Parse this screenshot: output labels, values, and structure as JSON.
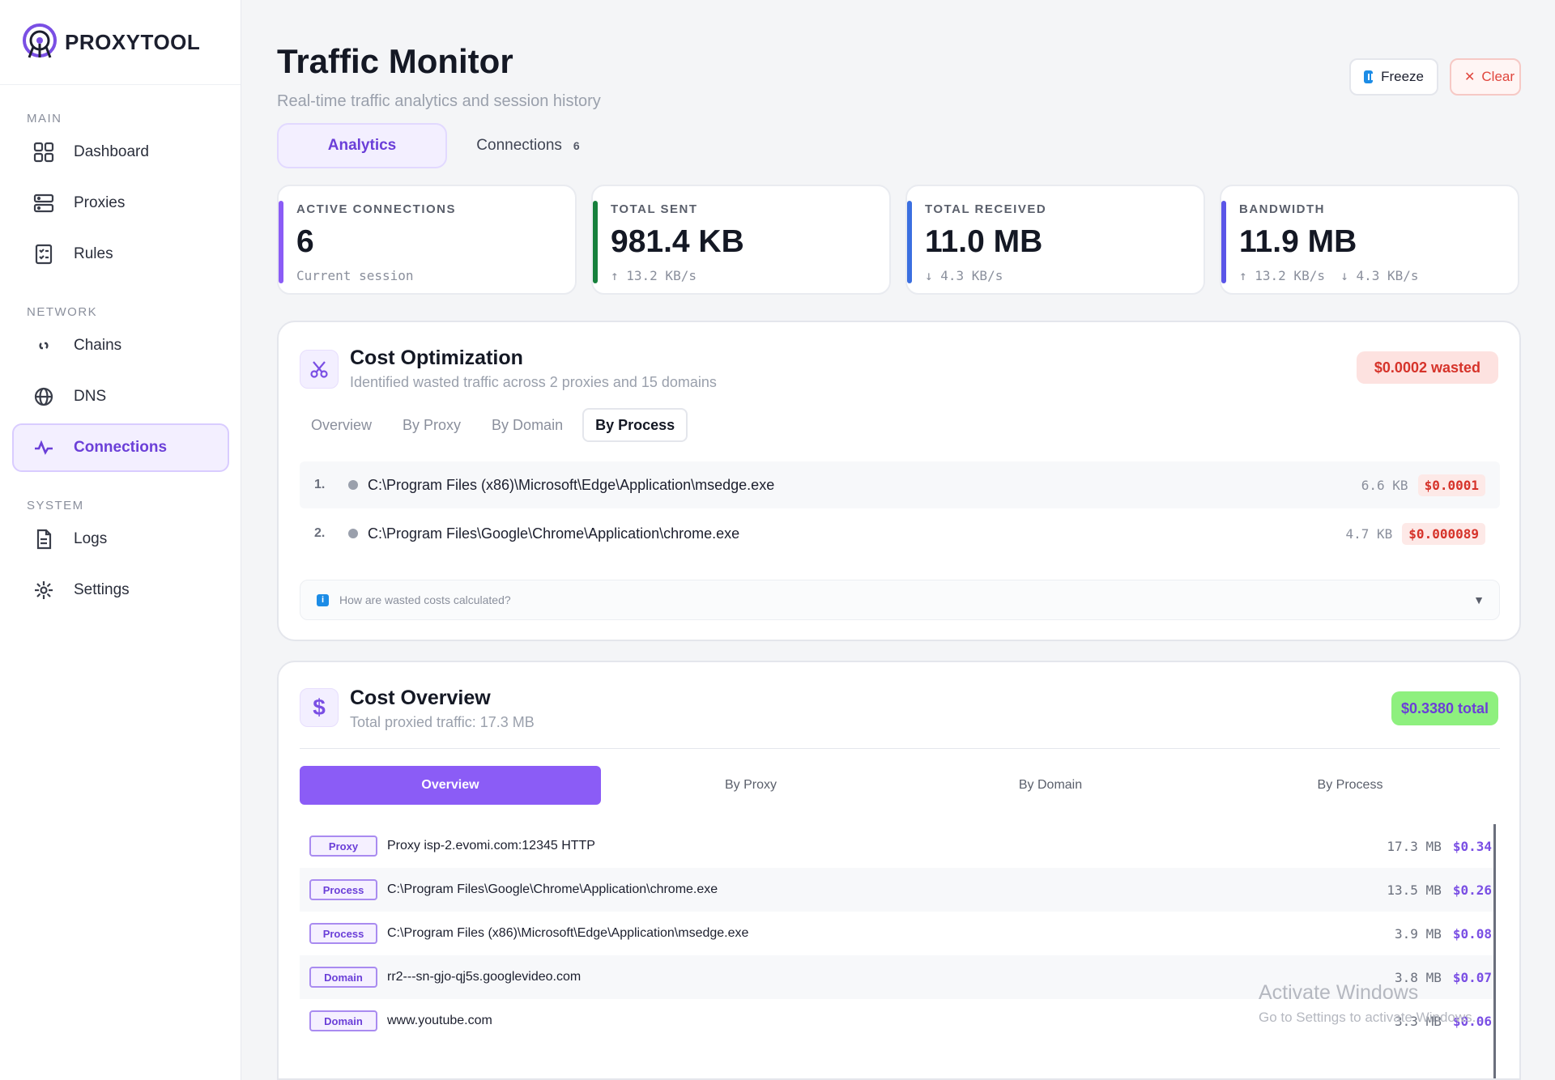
{
  "brand": {
    "name": "PROXYTOOL"
  },
  "sidebar": {
    "sections": [
      {
        "title": "MAIN",
        "items": [
          {
            "label": "Dashboard",
            "icon": "grid-icon"
          },
          {
            "label": "Proxies",
            "icon": "server-icon"
          },
          {
            "label": "Rules",
            "icon": "checklist-icon"
          }
        ]
      },
      {
        "title": "NETWORK",
        "items": [
          {
            "label": "Chains",
            "icon": "link-icon"
          },
          {
            "label": "DNS",
            "icon": "globe-icon"
          },
          {
            "label": "Connections",
            "icon": "activity-icon",
            "active": true
          }
        ]
      },
      {
        "title": "SYSTEM",
        "items": [
          {
            "label": "Logs",
            "icon": "document-icon"
          },
          {
            "label": "Settings",
            "icon": "gear-icon"
          }
        ]
      }
    ]
  },
  "header": {
    "title": "Traffic Monitor",
    "subtitle": "Real-time traffic analytics and session history",
    "freeze_label": "Freeze",
    "clear_label": "Clear"
  },
  "tabs": [
    {
      "label": "Analytics",
      "active": true
    },
    {
      "label": "Connections",
      "count": "6"
    }
  ],
  "stats": [
    {
      "label": "ACTIVE CONNECTIONS",
      "value": "6",
      "sub": "Current session",
      "color": "#8b5cf6"
    },
    {
      "label": "TOTAL SENT",
      "value": "981.4 KB",
      "sub": "↑ 13.2 KB/s",
      "color": "#16803c"
    },
    {
      "label": "TOTAL RECEIVED",
      "value": "11.0 MB",
      "sub": "↓ 4.3 KB/s",
      "color": "#3b6fe0"
    },
    {
      "label": "BANDWIDTH",
      "value": "11.9 MB",
      "sub": "↑ 13.2 KB/s  ↓ 4.3 KB/s",
      "color": "#5a55e8"
    }
  ],
  "cost_optimization": {
    "title": "Cost Optimization",
    "subtitle": "Identified wasted traffic across 2 proxies and 15 domains",
    "badge": "$0.0002 wasted",
    "subtabs": [
      "Overview",
      "By Proxy",
      "By Domain",
      "By Process"
    ],
    "active_subtab": "By Process",
    "rows": [
      {
        "num": "1.",
        "path": "C:\\Program Files (x86)\\Microsoft\\Edge\\Application\\msedge.exe",
        "size": "6.6 KB",
        "cost": "$0.0001"
      },
      {
        "num": "2.",
        "path": "C:\\Program Files\\Google\\Chrome\\Application\\chrome.exe",
        "size": "4.7 KB",
        "cost": "$0.000089"
      }
    ],
    "info_text": "How are wasted costs calculated?"
  },
  "cost_overview": {
    "title": "Cost Overview",
    "subtitle": "Total proxied traffic: 17.3 MB",
    "badge": "$0.3380 total",
    "tabs": [
      "Overview",
      "By Proxy",
      "By Domain",
      "By Process"
    ],
    "rows": [
      {
        "tag": "Proxy",
        "path": "Proxy isp-2.evomi.com:12345 HTTP",
        "size": "17.3 MB",
        "cost": "$0.34"
      },
      {
        "tag": "Process",
        "path": "C:\\Program Files\\Google\\Chrome\\Application\\chrome.exe",
        "size": "13.5 MB",
        "cost": "$0.26"
      },
      {
        "tag": "Process",
        "path": "C:\\Program Files (x86)\\Microsoft\\Edge\\Application\\msedge.exe",
        "size": "3.9 MB",
        "cost": "$0.08"
      },
      {
        "tag": "Domain",
        "path": "rr2---sn-gjo-qj5s.googlevideo.com",
        "size": "3.8 MB",
        "cost": "$0.07"
      },
      {
        "tag": "Domain",
        "path": "www.youtube.com",
        "size": "3.3 MB",
        "cost": "$0.06"
      }
    ]
  },
  "watermark": {
    "line1": "Activate Windows",
    "line2": "Go to Settings to activate Windows."
  }
}
